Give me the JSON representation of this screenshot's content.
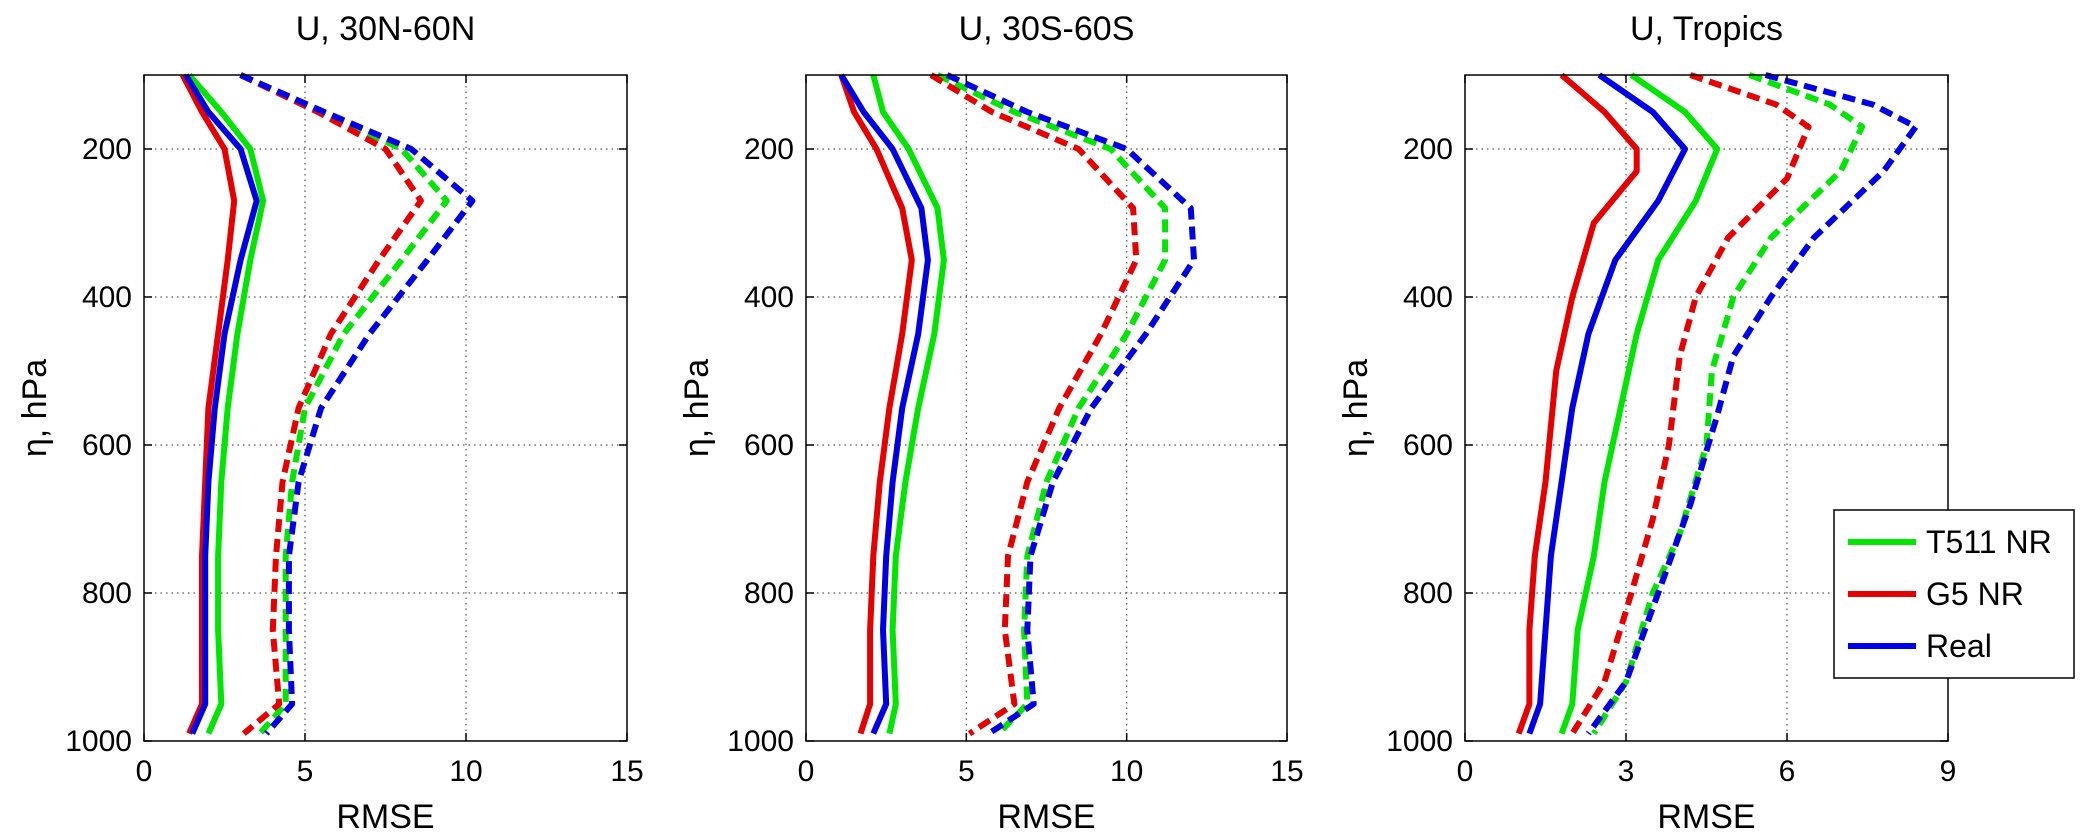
{
  "chart_data": [
    {
      "type": "line",
      "title": "U, 30N-60N",
      "xlabel": "RMSE",
      "ylabel": "η, hPa",
      "xlim": [
        0,
        15
      ],
      "ylim": [
        100,
        1000
      ],
      "y_reversed": true,
      "xticks": [
        0,
        5,
        10,
        15
      ],
      "yticks": [
        200,
        400,
        600,
        800,
        1000
      ],
      "grid": "dotted",
      "series": [
        {
          "group": "T511 NR",
          "style": "solid",
          "color": "#00e600",
          "points": [
            [
              1.4,
              100
            ],
            [
              2.4,
              150
            ],
            [
              3.3,
              200
            ],
            [
              3.7,
              270
            ],
            [
              3.3,
              350
            ],
            [
              2.9,
              450
            ],
            [
              2.6,
              550
            ],
            [
              2.4,
              650
            ],
            [
              2.3,
              750
            ],
            [
              2.3,
              850
            ],
            [
              2.4,
              950
            ],
            [
              2.0,
              990
            ]
          ]
        },
        {
          "group": "G5 NR",
          "style": "solid",
          "color": "#e60000",
          "points": [
            [
              1.2,
              100
            ],
            [
              1.8,
              150
            ],
            [
              2.5,
              200
            ],
            [
              2.8,
              270
            ],
            [
              2.6,
              350
            ],
            [
              2.3,
              450
            ],
            [
              2.0,
              550
            ],
            [
              1.9,
              650
            ],
            [
              1.8,
              750
            ],
            [
              1.8,
              850
            ],
            [
              1.8,
              950
            ],
            [
              1.4,
              990
            ]
          ]
        },
        {
          "group": "Real",
          "style": "solid",
          "color": "#0000e6",
          "points": [
            [
              1.3,
              100
            ],
            [
              2.0,
              150
            ],
            [
              3.0,
              200
            ],
            [
              3.5,
              270
            ],
            [
              3.0,
              350
            ],
            [
              2.5,
              450
            ],
            [
              2.2,
              550
            ],
            [
              2.0,
              650
            ],
            [
              1.9,
              750
            ],
            [
              1.9,
              850
            ],
            [
              1.9,
              950
            ],
            [
              1.5,
              990
            ]
          ]
        },
        {
          "group": "T511 NR",
          "style": "dashed",
          "color": "#00e600",
          "points": [
            [
              3.0,
              100
            ],
            [
              5.5,
              150
            ],
            [
              8.0,
              200
            ],
            [
              9.4,
              270
            ],
            [
              8.0,
              350
            ],
            [
              6.2,
              450
            ],
            [
              5.0,
              550
            ],
            [
              4.6,
              650
            ],
            [
              4.4,
              750
            ],
            [
              4.4,
              850
            ],
            [
              4.4,
              950
            ],
            [
              3.6,
              990
            ]
          ]
        },
        {
          "group": "G5 NR",
          "style": "dashed",
          "color": "#e60000",
          "points": [
            [
              3.0,
              100
            ],
            [
              5.4,
              150
            ],
            [
              7.5,
              200
            ],
            [
              8.6,
              270
            ],
            [
              7.3,
              350
            ],
            [
              5.8,
              450
            ],
            [
              4.8,
              550
            ],
            [
              4.3,
              650
            ],
            [
              4.1,
              750
            ],
            [
              4.0,
              850
            ],
            [
              4.2,
              950
            ],
            [
              3.1,
              990
            ]
          ]
        },
        {
          "group": "Real",
          "style": "dashed",
          "color": "#0000e6",
          "points": [
            [
              3.0,
              100
            ],
            [
              5.6,
              150
            ],
            [
              8.3,
              200
            ],
            [
              10.2,
              270
            ],
            [
              8.8,
              350
            ],
            [
              7.0,
              450
            ],
            [
              5.5,
              550
            ],
            [
              4.8,
              650
            ],
            [
              4.5,
              750
            ],
            [
              4.5,
              850
            ],
            [
              4.6,
              950
            ],
            [
              3.8,
              990
            ]
          ]
        }
      ]
    },
    {
      "type": "line",
      "title": "U, 30S-60S",
      "xlabel": "RMSE",
      "ylabel": "η, hPa",
      "xlim": [
        0,
        15
      ],
      "ylim": [
        100,
        1000
      ],
      "y_reversed": true,
      "xticks": [
        0,
        5,
        10,
        15
      ],
      "yticks": [
        200,
        400,
        600,
        800,
        1000
      ],
      "grid": "dotted",
      "series": [
        {
          "group": "T511 NR",
          "style": "solid",
          "color": "#00e600",
          "points": [
            [
              2.1,
              100
            ],
            [
              2.4,
              150
            ],
            [
              3.2,
              200
            ],
            [
              4.1,
              280
            ],
            [
              4.3,
              350
            ],
            [
              4.0,
              450
            ],
            [
              3.5,
              550
            ],
            [
              3.1,
              650
            ],
            [
              2.8,
              750
            ],
            [
              2.7,
              850
            ],
            [
              2.8,
              950
            ],
            [
              2.6,
              990
            ]
          ]
        },
        {
          "group": "G5 NR",
          "style": "solid",
          "color": "#e60000",
          "points": [
            [
              1.1,
              100
            ],
            [
              1.5,
              150
            ],
            [
              2.2,
              200
            ],
            [
              3.0,
              280
            ],
            [
              3.3,
              350
            ],
            [
              3.0,
              450
            ],
            [
              2.6,
              550
            ],
            [
              2.3,
              650
            ],
            [
              2.1,
              750
            ],
            [
              2.0,
              850
            ],
            [
              2.0,
              950
            ],
            [
              1.7,
              990
            ]
          ]
        },
        {
          "group": "Real",
          "style": "solid",
          "color": "#0000e6",
          "points": [
            [
              1.1,
              100
            ],
            [
              1.8,
              150
            ],
            [
              2.7,
              200
            ],
            [
              3.6,
              280
            ],
            [
              3.8,
              350
            ],
            [
              3.5,
              450
            ],
            [
              3.0,
              550
            ],
            [
              2.7,
              650
            ],
            [
              2.5,
              750
            ],
            [
              2.4,
              850
            ],
            [
              2.5,
              950
            ],
            [
              2.1,
              990
            ]
          ]
        },
        {
          "group": "T511 NR",
          "style": "dashed",
          "color": "#00e600",
          "points": [
            [
              4.1,
              100
            ],
            [
              6.5,
              150
            ],
            [
              9.5,
              200
            ],
            [
              11.2,
              280
            ],
            [
              11.2,
              350
            ],
            [
              10.0,
              450
            ],
            [
              8.5,
              550
            ],
            [
              7.5,
              650
            ],
            [
              6.9,
              750
            ],
            [
              6.8,
              850
            ],
            [
              6.9,
              950
            ],
            [
              6.0,
              990
            ]
          ]
        },
        {
          "group": "G5 NR",
          "style": "dashed",
          "color": "#e60000",
          "points": [
            [
              3.9,
              100
            ],
            [
              5.8,
              150
            ],
            [
              8.5,
              200
            ],
            [
              10.2,
              280
            ],
            [
              10.3,
              350
            ],
            [
              9.2,
              450
            ],
            [
              7.9,
              550
            ],
            [
              6.9,
              650
            ],
            [
              6.3,
              750
            ],
            [
              6.2,
              850
            ],
            [
              6.5,
              950
            ],
            [
              5.1,
              990
            ]
          ]
        },
        {
          "group": "Real",
          "style": "dashed",
          "color": "#0000e6",
          "points": [
            [
              4.4,
              100
            ],
            [
              6.9,
              150
            ],
            [
              10.0,
              200
            ],
            [
              12.0,
              280
            ],
            [
              12.1,
              350
            ],
            [
              10.6,
              450
            ],
            [
              8.9,
              550
            ],
            [
              7.7,
              650
            ],
            [
              7.0,
              750
            ],
            [
              6.9,
              850
            ],
            [
              7.1,
              950
            ],
            [
              5.7,
              990
            ]
          ]
        }
      ]
    },
    {
      "type": "line",
      "title": "U, Tropics",
      "xlabel": "RMSE",
      "ylabel": "η, hPa",
      "xlim": [
        0,
        9
      ],
      "ylim": [
        100,
        1000
      ],
      "y_reversed": true,
      "xticks": [
        0,
        3,
        6,
        9
      ],
      "yticks": [
        200,
        400,
        600,
        800,
        1000
      ],
      "grid": "dotted",
      "series": [
        {
          "group": "T511 NR",
          "style": "solid",
          "color": "#00e600",
          "points": [
            [
              3.1,
              100
            ],
            [
              4.1,
              150
            ],
            [
              4.7,
              200
            ],
            [
              4.3,
              270
            ],
            [
              3.6,
              350
            ],
            [
              3.2,
              450
            ],
            [
              2.9,
              550
            ],
            [
              2.6,
              650
            ],
            [
              2.4,
              750
            ],
            [
              2.1,
              850
            ],
            [
              2.0,
              950
            ],
            [
              1.8,
              990
            ]
          ]
        },
        {
          "group": "G5 NR",
          "style": "solid",
          "color": "#e60000",
          "points": [
            [
              1.8,
              100
            ],
            [
              2.6,
              150
            ],
            [
              3.2,
              200
            ],
            [
              3.2,
              230
            ],
            [
              2.4,
              300
            ],
            [
              2.0,
              400
            ],
            [
              1.7,
              500
            ],
            [
              1.5,
              650
            ],
            [
              1.3,
              750
            ],
            [
              1.2,
              850
            ],
            [
              1.2,
              950
            ],
            [
              1.0,
              990
            ]
          ]
        },
        {
          "group": "Real",
          "style": "solid",
          "color": "#0000e6",
          "points": [
            [
              2.5,
              100
            ],
            [
              3.5,
              150
            ],
            [
              4.1,
              200
            ],
            [
              3.6,
              270
            ],
            [
              2.8,
              350
            ],
            [
              2.3,
              450
            ],
            [
              2.0,
              550
            ],
            [
              1.8,
              650
            ],
            [
              1.6,
              750
            ],
            [
              1.5,
              850
            ],
            [
              1.4,
              950
            ],
            [
              1.2,
              990
            ]
          ]
        },
        {
          "group": "T511 NR",
          "style": "dashed",
          "color": "#00e600",
          "points": [
            [
              5.3,
              100
            ],
            [
              6.8,
              140
            ],
            [
              7.4,
              170
            ],
            [
              7.0,
              230
            ],
            [
              5.7,
              320
            ],
            [
              5.0,
              400
            ],
            [
              4.6,
              500
            ],
            [
              4.5,
              600
            ],
            [
              4.0,
              720
            ],
            [
              3.5,
              800
            ],
            [
              3.0,
              920
            ],
            [
              2.4,
              990
            ]
          ]
        },
        {
          "group": "G5 NR",
          "style": "dashed",
          "color": "#e60000",
          "points": [
            [
              4.2,
              100
            ],
            [
              5.8,
              140
            ],
            [
              6.4,
              170
            ],
            [
              6.0,
              240
            ],
            [
              4.9,
              320
            ],
            [
              4.3,
              400
            ],
            [
              4.0,
              480
            ],
            [
              3.8,
              600
            ],
            [
              3.5,
              700
            ],
            [
              3.1,
              800
            ],
            [
              2.6,
              920
            ],
            [
              2.0,
              990
            ]
          ]
        },
        {
          "group": "Real",
          "style": "dashed",
          "color": "#0000e6",
          "points": [
            [
              5.6,
              100
            ],
            [
              7.6,
              140
            ],
            [
              8.4,
              170
            ],
            [
              7.8,
              230
            ],
            [
              6.5,
              320
            ],
            [
              5.7,
              400
            ],
            [
              5.0,
              480
            ],
            [
              4.7,
              560
            ],
            [
              4.2,
              680
            ],
            [
              3.6,
              800
            ],
            [
              3.0,
              920
            ],
            [
              2.3,
              990
            ]
          ]
        }
      ]
    }
  ],
  "legend": {
    "placement": "right of third panel, lower",
    "items": [
      {
        "label": "T511 NR",
        "color": "#00e600"
      },
      {
        "label": "G5 NR",
        "color": "#e60000"
      },
      {
        "label": "Real",
        "color": "#0000e6"
      }
    ]
  }
}
